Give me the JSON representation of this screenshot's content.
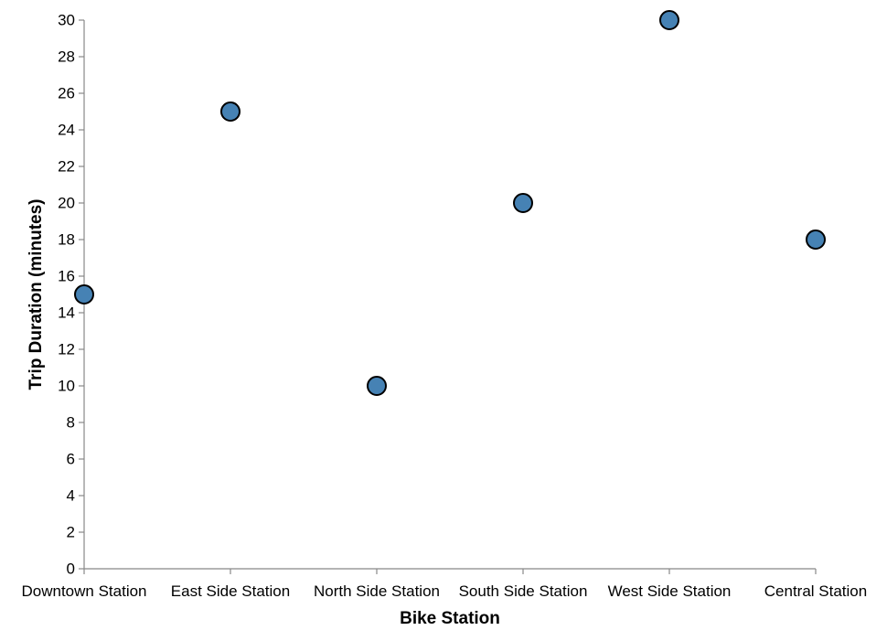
{
  "chart_data": {
    "type": "scatter",
    "title": "",
    "xlabel": "Bike Station",
    "ylabel": "Trip Duration (minutes)",
    "categories": [
      "Downtown Station",
      "East Side Station",
      "North Side Station",
      "South Side Station",
      "West Side Station",
      "Central Station"
    ],
    "series": [
      {
        "values": [
          15,
          25,
          10,
          20,
          30,
          18
        ]
      }
    ],
    "ylim": [
      0,
      30
    ],
    "yticks": [
      0,
      2,
      4,
      6,
      8,
      10,
      12,
      14,
      16,
      18,
      20,
      22,
      24,
      26,
      28,
      30
    ],
    "grid": false,
    "legend": "none",
    "point_color": "#4682b4",
    "point_stroke": "#000000"
  }
}
